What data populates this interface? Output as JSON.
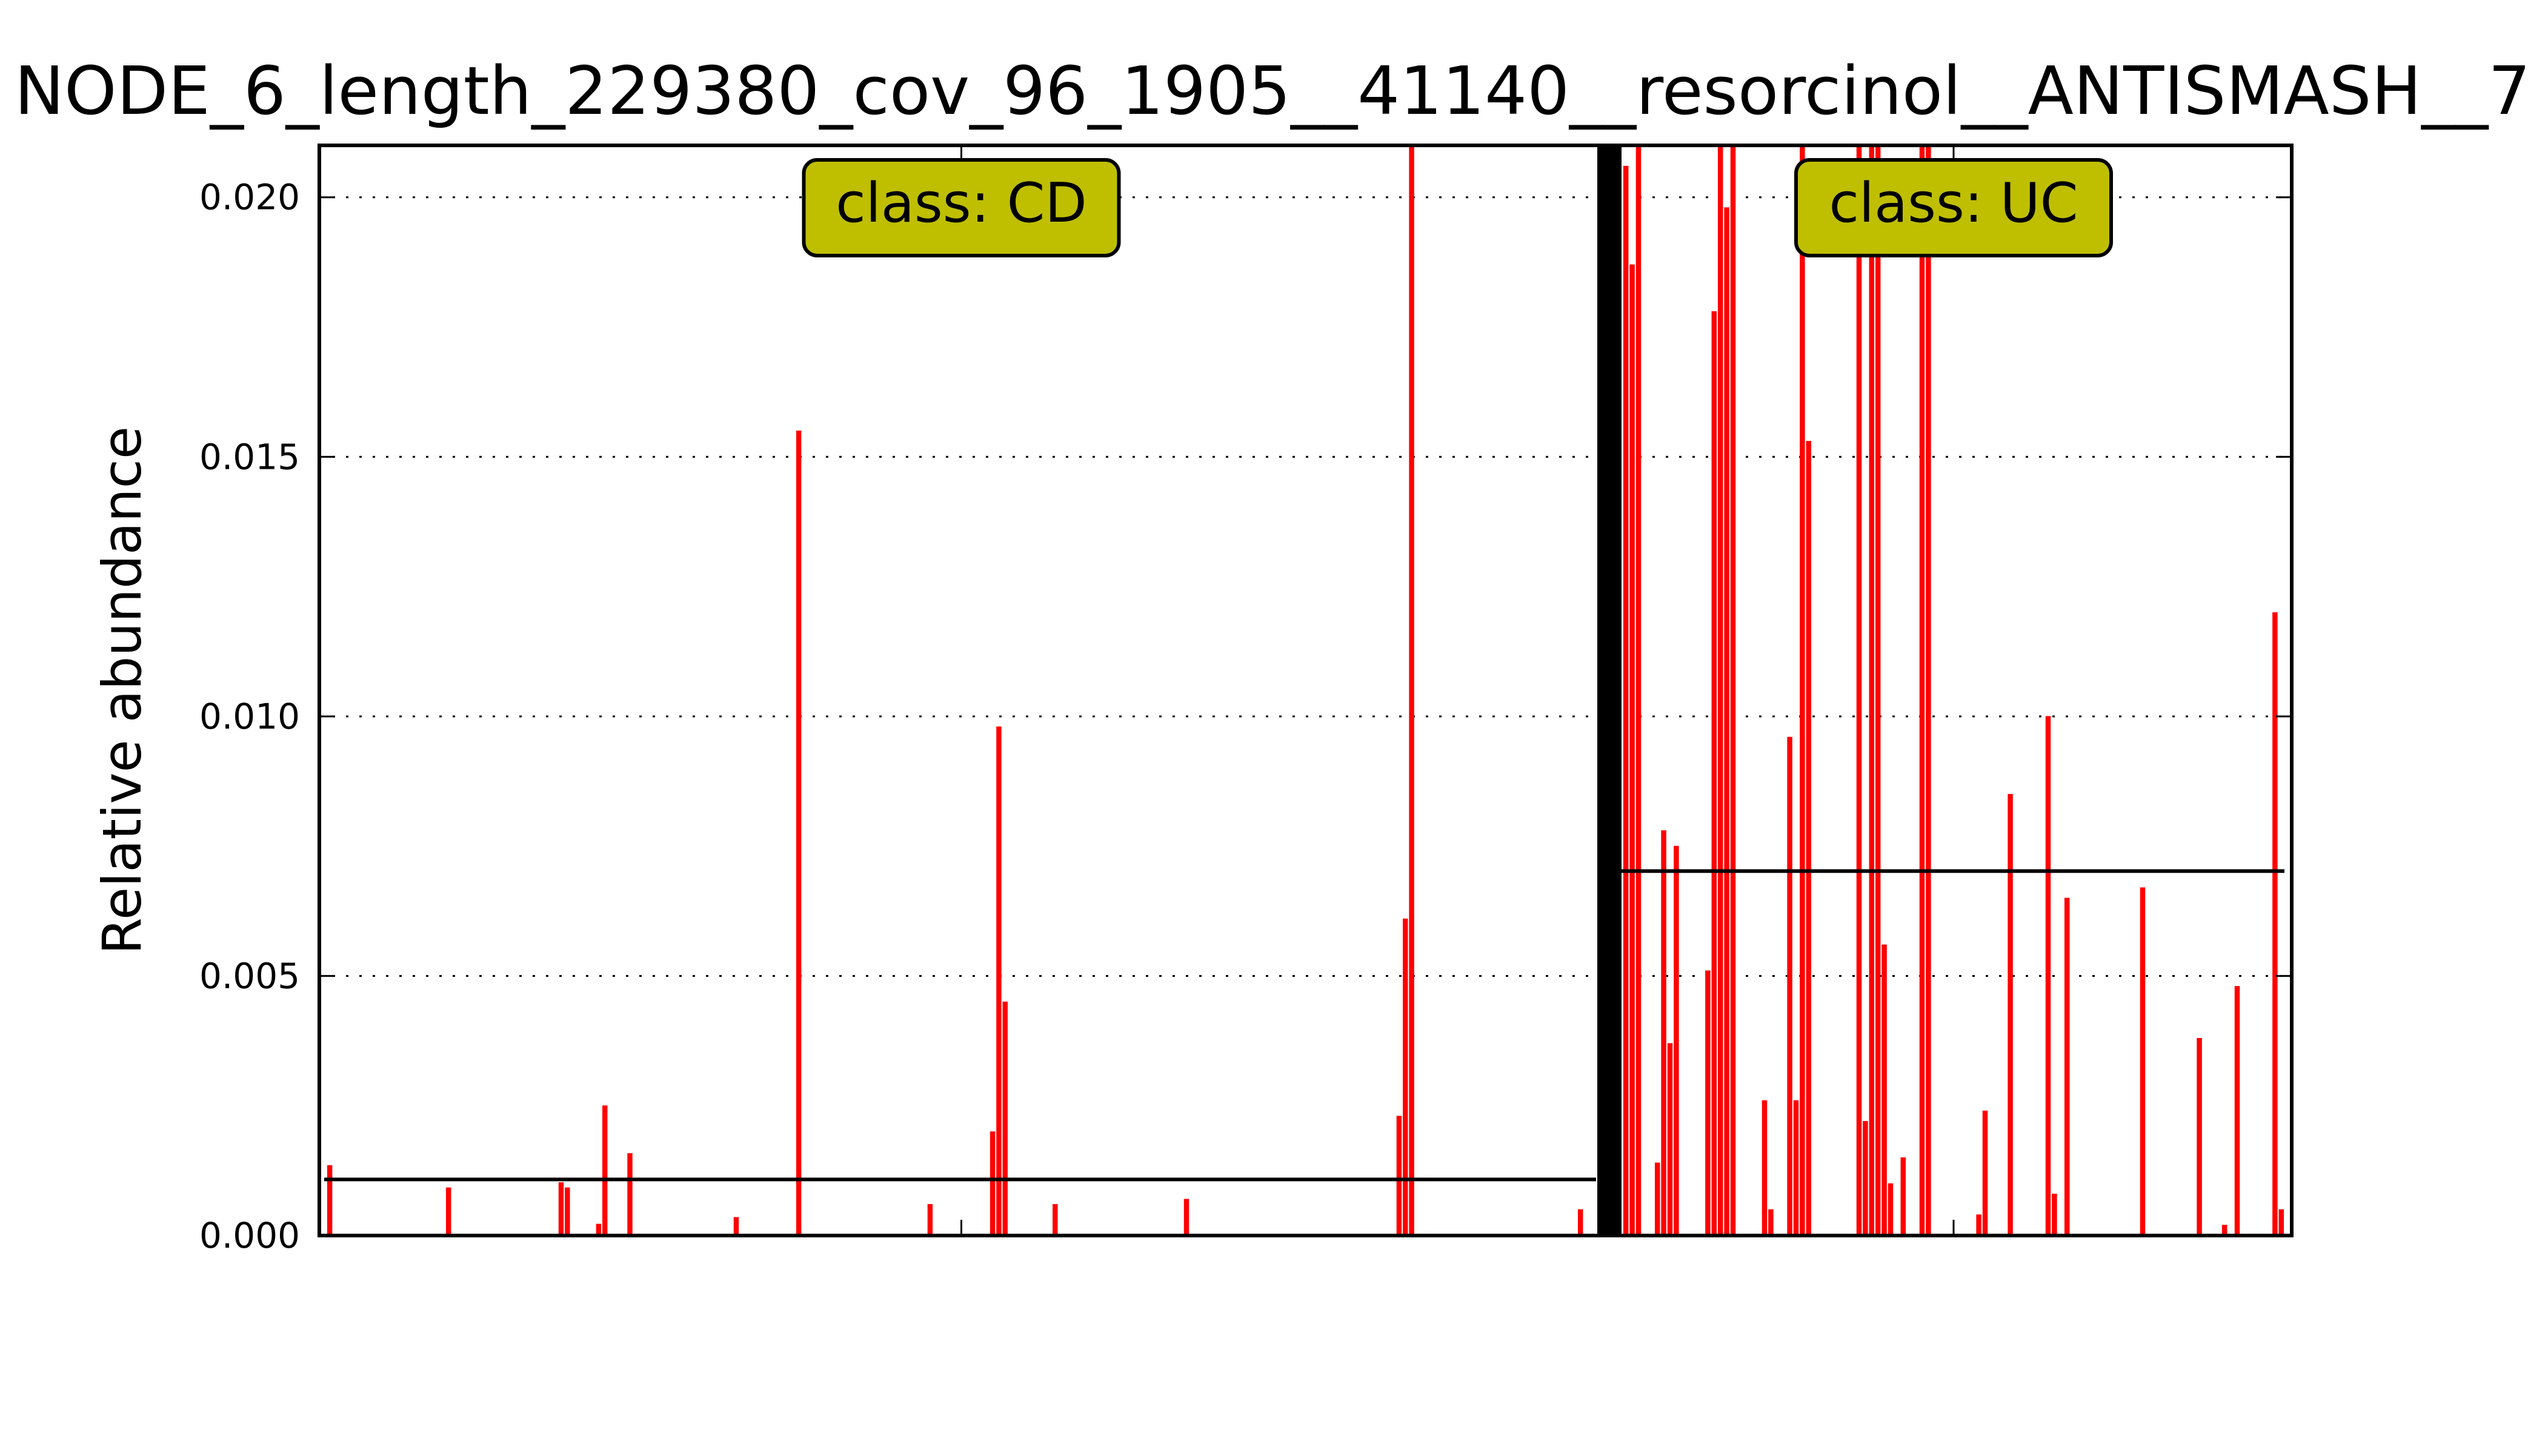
{
  "chart_data": {
    "type": "bar",
    "title": "NODE_6_length_229380_cov_96_1905__41140__resorcinol__ANTISMASH__7",
    "xlabel": "",
    "ylabel": "Relative abundance",
    "ylim": [
      0,
      0.021
    ],
    "yticks": [
      "0.000",
      "0.005",
      "0.010",
      "0.015",
      "0.020"
    ],
    "ytick_values": [
      0,
      0.005,
      0.01,
      0.015,
      0.02
    ],
    "grid": "horizontal-dotted",
    "bar_color": "#ff0000",
    "box_color": "#bfbf00",
    "groups": [
      {
        "label": "class: CD",
        "mean": 0.00108,
        "values": [
          0.00135,
          0,
          0,
          0,
          0,
          0,
          0,
          0,
          0,
          0,
          0,
          0,
          0,
          0,
          0,
          0,
          0,
          0,
          0,
          0.00092,
          0,
          0,
          0,
          0,
          0,
          0,
          0,
          0,
          0,
          0,
          0,
          0,
          0,
          0,
          0,
          0,
          0,
          0.00102,
          0.00092,
          0,
          0,
          0,
          0,
          0.00022,
          0.0025,
          0,
          0,
          0,
          0.00158,
          0,
          0,
          0,
          0,
          0,
          0,
          0,
          0,
          0,
          0,
          0,
          0,
          0,
          0,
          0,
          0,
          0.00035,
          0,
          0,
          0,
          0,
          0,
          0,
          0,
          0,
          0,
          0.0155,
          0,
          0,
          0,
          0,
          0,
          0,
          0,
          0,
          0,
          0,
          0,
          0,
          0,
          0,
          0,
          0,
          0,
          0,
          0,
          0,
          0.0006,
          0,
          0,
          0,
          0,
          0,
          0,
          0,
          0,
          0,
          0.002,
          0.0098,
          0.0045,
          0,
          0,
          0,
          0,
          0,
          0,
          0,
          0.0006,
          0,
          0,
          0,
          0,
          0,
          0,
          0,
          0,
          0,
          0,
          0,
          0,
          0,
          0,
          0,
          0,
          0,
          0,
          0,
          0,
          0.0007,
          0,
          0,
          0,
          0,
          0,
          0,
          0,
          0,
          0,
          0,
          0,
          0,
          0,
          0,
          0,
          0,
          0,
          0,
          0,
          0,
          0,
          0,
          0,
          0,
          0,
          0,
          0,
          0,
          0,
          0,
          0,
          0,
          0,
          0.0023,
          0.0061,
          0.021,
          0,
          0,
          0,
          0,
          0,
          0,
          0,
          0,
          0,
          0,
          0,
          0,
          0,
          0,
          0,
          0,
          0,
          0,
          0,
          0,
          0,
          0,
          0,
          0,
          0,
          0,
          0.0005,
          0,
          0
        ]
      },
      {
        "label": "class: UC",
        "mean": 0.00702,
        "values": [
          0.0206,
          0.0187,
          0.021,
          0,
          0,
          0.0014,
          0.0078,
          0.0037,
          0.0075,
          0,
          0,
          0,
          0,
          0.0051,
          0.0178,
          0.021,
          0.0198,
          0.021,
          0,
          0,
          0,
          0,
          0.0026,
          0.0005,
          0,
          0,
          0.0096,
          0.0026,
          0.021,
          0.0153,
          0,
          0,
          0,
          0,
          0,
          0,
          0,
          0.021,
          0.0022,
          0.021,
          0.021,
          0.0056,
          0.001,
          0,
          0.0015,
          0,
          0,
          0.021,
          0.021,
          0,
          0,
          0,
          0,
          0,
          0,
          0,
          0.0004,
          0.0024,
          0,
          0,
          0,
          0.0085,
          0,
          0,
          0,
          0,
          0,
          0.01,
          0.0008,
          0,
          0.0065,
          0,
          0,
          0,
          0,
          0,
          0,
          0,
          0,
          0,
          0,
          0,
          0.0067,
          0,
          0,
          0,
          0,
          0,
          0,
          0,
          0,
          0.0038,
          0,
          0,
          0,
          0.0002,
          0,
          0.0048,
          0,
          0,
          0,
          0,
          0,
          0.012,
          0.0005
        ]
      }
    ]
  }
}
